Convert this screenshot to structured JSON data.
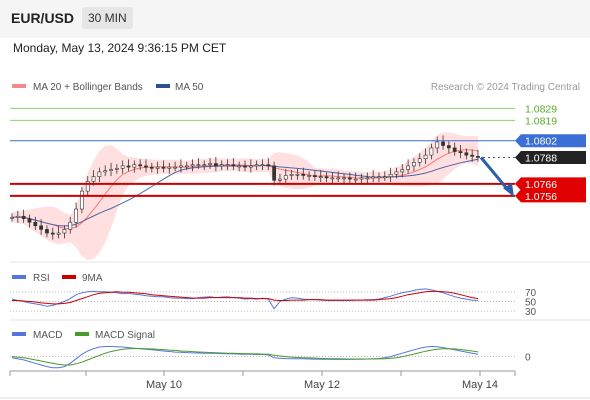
{
  "header": {
    "symbol": "EUR/USD",
    "timeframe": "30 MIN",
    "datetime": "Monday, May 13, 2024 9:36:15 PM CET"
  },
  "legend": {
    "bollinger_label": "MA 20 + Bollinger Bands",
    "ma50_label": "MA 50",
    "credit": "Research © 2024 Trading Central"
  },
  "colors": {
    "candle": "#333333",
    "bollinger": "#ff7777",
    "band_fill": "#ffd9d9",
    "ma50": "#4a66a8",
    "target_up": "#5daa2a",
    "pivot": "#3b6fd4",
    "support": "#cc0000",
    "arrow": "#2a5ea8",
    "rsi": "#5577dd",
    "macd": "#5577dd",
    "macd_signal": "#4a9a2a"
  },
  "chart_data": [
    {
      "type": "candlestick",
      "title": "EUR/USD 30 MIN",
      "x_ticks": [
        "May 10",
        "May 12",
        "May 14"
      ],
      "ylim": [
        1.0715,
        1.0836
      ],
      "close_series": [
        1.0738,
        1.0739,
        1.0737,
        1.0734,
        1.0731,
        1.0728,
        1.0725,
        1.0724,
        1.0725,
        1.0728,
        1.0734,
        1.0745,
        1.076,
        1.0768,
        1.0772,
        1.0776,
        1.0777,
        1.0778,
        1.0779,
        1.0781,
        1.078,
        1.0782,
        1.0781,
        1.078,
        1.0779,
        1.078,
        1.0779,
        1.078,
        1.078,
        1.0781,
        1.0781,
        1.0782,
        1.0782,
        1.0782,
        1.0783,
        1.0781,
        1.0782,
        1.0782,
        1.0781,
        1.0781,
        1.078,
        1.0781,
        1.0782,
        1.0782,
        1.0781,
        1.0769,
        1.077,
        1.0773,
        1.0774,
        1.0774,
        1.0773,
        1.0773,
        1.0772,
        1.0772,
        1.0771,
        1.0771,
        1.0771,
        1.0771,
        1.077,
        1.077,
        1.0771,
        1.0771,
        1.0772,
        1.0772,
        1.0772,
        1.0774,
        1.0776,
        1.0778,
        1.0781,
        1.0784,
        1.0787,
        1.079,
        1.0796,
        1.0801,
        1.0798,
        1.0796,
        1.0793,
        1.0792,
        1.079,
        1.0789,
        1.0788
      ],
      "levels": [
        {
          "value": 1.0829,
          "label": "1.0829",
          "kind": "resistance"
        },
        {
          "value": 1.0819,
          "label": "1.0819",
          "kind": "resistance"
        },
        {
          "value": 1.0802,
          "label": "1.0802",
          "kind": "pivot"
        },
        {
          "value": 1.0788,
          "label": "1.0788",
          "kind": "last"
        },
        {
          "value": 1.0766,
          "label": "1.0766",
          "kind": "support"
        },
        {
          "value": 1.0756,
          "label": "1.0756",
          "kind": "support"
        }
      ]
    },
    {
      "type": "line",
      "title": "RSI",
      "legend": [
        "RSI",
        "9MA"
      ],
      "y_ticks": [
        "70",
        "50",
        "30"
      ],
      "ylim": [
        20,
        80
      ],
      "series": [
        {
          "name": "RSI",
          "values": [
            55,
            52,
            50,
            47,
            45,
            43,
            40,
            42,
            46,
            50,
            56,
            64,
            68,
            70,
            71,
            70,
            70,
            69,
            68,
            66,
            67,
            65,
            64,
            62,
            61,
            60,
            60,
            58,
            57,
            57,
            56,
            56,
            58,
            59,
            60,
            58,
            59,
            60,
            58,
            57,
            55,
            56,
            55,
            57,
            55,
            35,
            50,
            55,
            58,
            57,
            55,
            54,
            54,
            53,
            52,
            52,
            52,
            52,
            52,
            53,
            53,
            54,
            54,
            55,
            58,
            61,
            65,
            68,
            70,
            73,
            75,
            76,
            74,
            71,
            68,
            64,
            60,
            57,
            55,
            53,
            52
          ]
        },
        {
          "name": "9MA",
          "values": [
            52,
            52,
            51,
            50,
            49,
            47,
            46,
            45,
            45,
            46,
            48,
            52,
            56,
            60,
            64,
            67,
            68,
            69,
            70,
            69,
            69,
            68,
            67,
            66,
            64,
            63,
            62,
            61,
            60,
            59,
            58,
            57,
            57,
            57,
            58,
            58,
            58,
            58,
            58,
            58,
            57,
            57,
            56,
            56,
            56,
            53,
            52,
            52,
            53,
            53,
            53,
            54,
            54,
            54,
            53,
            53,
            53,
            53,
            53,
            53,
            53,
            53,
            53,
            54,
            55,
            56,
            58,
            61,
            64,
            66,
            68,
            70,
            71,
            71,
            70,
            69,
            67,
            64,
            61,
            58,
            56
          ]
        }
      ]
    },
    {
      "type": "line",
      "title": "MACD",
      "legend": [
        "MACD",
        "MACD Signal"
      ],
      "y_ticks": [
        "0"
      ],
      "ylim": [
        -1.2,
        1.3
      ],
      "series": [
        {
          "name": "MACD",
          "values": [
            -0.1,
            -0.2,
            -0.3,
            -0.45,
            -0.6,
            -0.75,
            -0.9,
            -1.0,
            -1.0,
            -0.9,
            -0.6,
            -0.2,
            0.2,
            0.5,
            0.7,
            0.85,
            0.9,
            0.9,
            0.88,
            0.85,
            0.8,
            0.75,
            0.7,
            0.65,
            0.6,
            0.55,
            0.5,
            0.45,
            0.4,
            0.38,
            0.35,
            0.33,
            0.32,
            0.3,
            0.3,
            0.28,
            0.26,
            0.25,
            0.24,
            0.22,
            0.2,
            0.2,
            0.18,
            0.18,
            0.15,
            -0.1,
            -0.15,
            -0.18,
            -0.2,
            -0.2,
            -0.2,
            -0.22,
            -0.23,
            -0.24,
            -0.24,
            -0.25,
            -0.25,
            -0.25,
            -0.25,
            -0.24,
            -0.24,
            -0.22,
            -0.2,
            -0.18,
            -0.1,
            0.0,
            0.15,
            0.3,
            0.45,
            0.6,
            0.75,
            0.85,
            0.9,
            0.88,
            0.8,
            0.7,
            0.6,
            0.5,
            0.4,
            0.3,
            0.2
          ]
        },
        {
          "name": "MACD Signal",
          "values": [
            0.0,
            -0.05,
            -0.1,
            -0.2,
            -0.3,
            -0.4,
            -0.5,
            -0.6,
            -0.7,
            -0.75,
            -0.75,
            -0.65,
            -0.5,
            -0.3,
            -0.1,
            0.1,
            0.3,
            0.45,
            0.55,
            0.65,
            0.7,
            0.72,
            0.72,
            0.7,
            0.68,
            0.65,
            0.62,
            0.58,
            0.55,
            0.5,
            0.47,
            0.44,
            0.41,
            0.38,
            0.36,
            0.34,
            0.32,
            0.3,
            0.29,
            0.27,
            0.26,
            0.25,
            0.24,
            0.22,
            0.2,
            0.12,
            0.05,
            0.0,
            -0.05,
            -0.08,
            -0.1,
            -0.12,
            -0.14,
            -0.16,
            -0.18,
            -0.19,
            -0.2,
            -0.21,
            -0.22,
            -0.22,
            -0.22,
            -0.22,
            -0.22,
            -0.21,
            -0.19,
            -0.15,
            -0.1,
            -0.02,
            0.1,
            0.22,
            0.35,
            0.48,
            0.58,
            0.65,
            0.7,
            0.7,
            0.68,
            0.63,
            0.57,
            0.5,
            0.42
          ]
        }
      ]
    }
  ]
}
